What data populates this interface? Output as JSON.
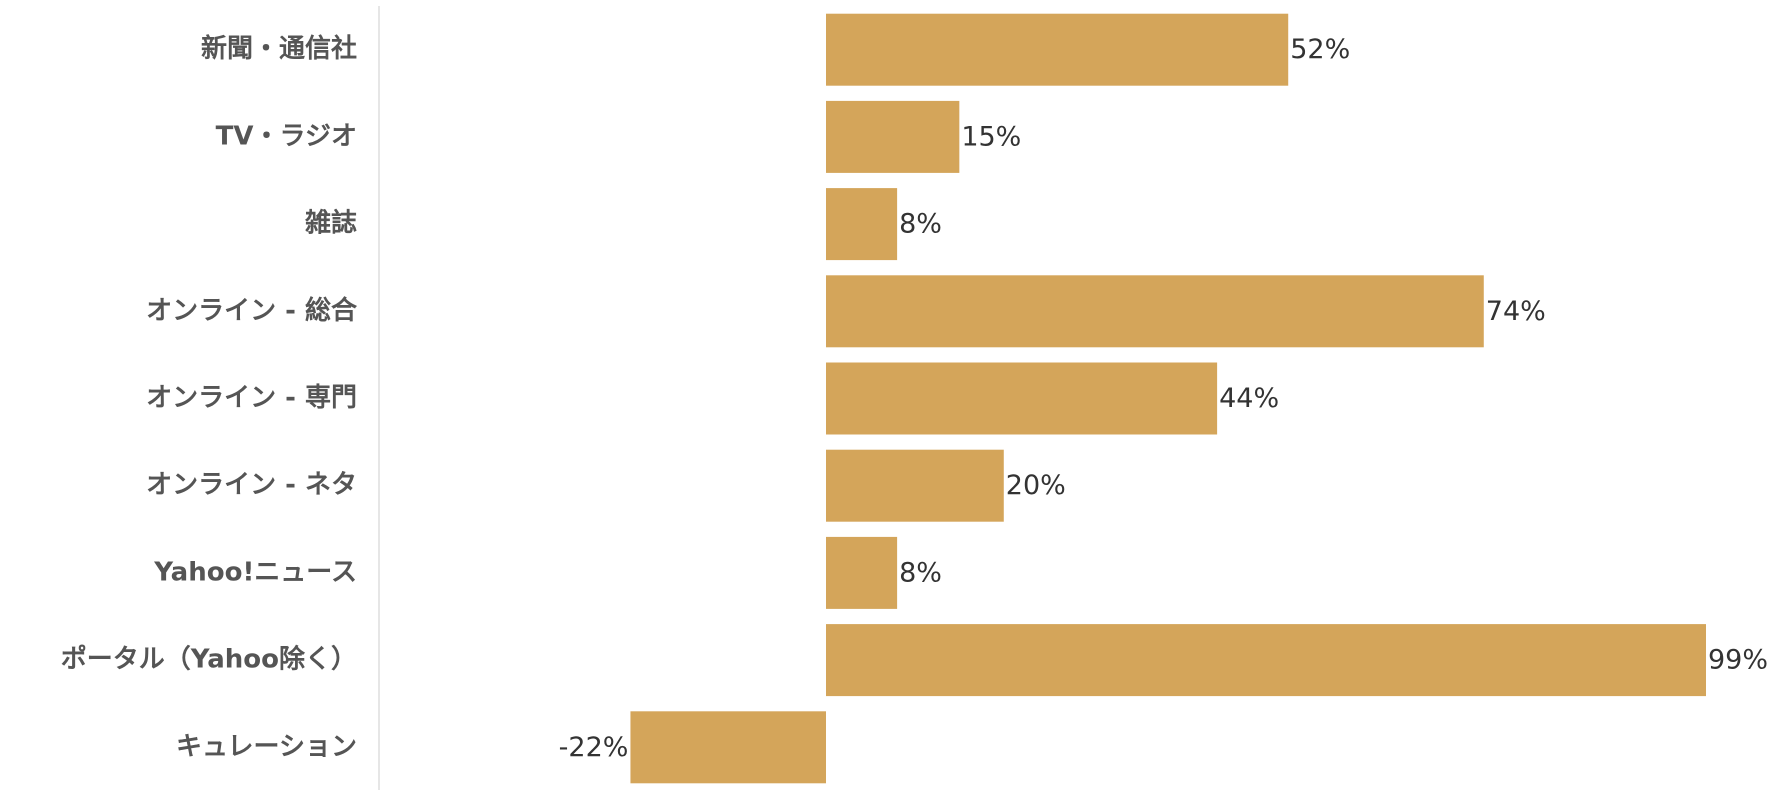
{
  "chart_data": {
    "type": "bar",
    "orientation": "horizontal",
    "categories": [
      "新聞・通信社",
      "TV・ラジオ",
      "雑誌",
      "オンライン - 総合",
      "オンライン - 専門",
      "オンライン - ネタ",
      "Yahoo!ニュース",
      "ポータル（Yahoo除く）",
      "キュレーション"
    ],
    "values": [
      52,
      15,
      8,
      74,
      44,
      20,
      8,
      99,
      -22
    ],
    "value_labels": [
      "52%",
      "15%",
      "8%",
      "74%",
      "44%",
      "20%",
      "8%",
      "99%",
      "-22%"
    ],
    "color": "#d4a55a"
  }
}
